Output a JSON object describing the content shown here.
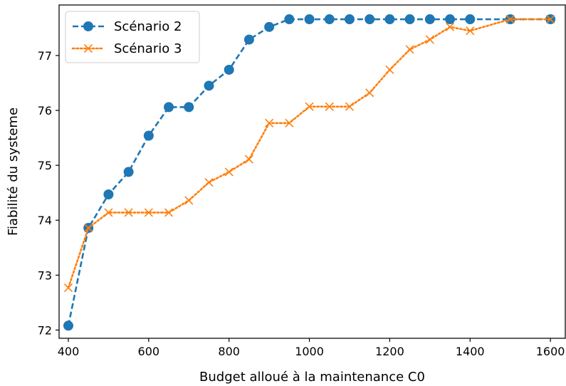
{
  "chart_data": {
    "type": "line",
    "title": "",
    "xlabel": "Budget alloué à la maintenance C0",
    "ylabel": "Fiabilité du systeme",
    "xlim": [
      377,
      1637
    ],
    "ylim": [
      71.85,
      77.92
    ],
    "xticks": [
      400,
      600,
      800,
      1000,
      1200,
      1400,
      1600
    ],
    "yticks": [
      72,
      73,
      74,
      75,
      76,
      77
    ],
    "grid": false,
    "legend": "top-left",
    "series": [
      {
        "name": "Scénario 2",
        "color": "#1f77b4",
        "line_style": "dashed",
        "marker": "circle",
        "x": [
          400,
          450,
          500,
          550,
          600,
          650,
          700,
          750,
          800,
          850,
          900,
          950,
          1000,
          1050,
          1100,
          1150,
          1200,
          1250,
          1300,
          1350,
          1400,
          1500,
          1600
        ],
        "y": [
          72.08,
          73.86,
          74.47,
          74.88,
          75.54,
          76.06,
          76.06,
          76.45,
          76.74,
          77.29,
          77.52,
          77.66,
          77.66,
          77.66,
          77.66,
          77.66,
          77.66,
          77.66,
          77.66,
          77.66,
          77.66,
          77.66,
          77.66
        ]
      },
      {
        "name": "Scénario 3",
        "color": "#ff7f0e",
        "line_style": "dotted",
        "marker": "x",
        "x": [
          400,
          450,
          500,
          550,
          600,
          650,
          700,
          750,
          800,
          850,
          900,
          950,
          1000,
          1050,
          1100,
          1150,
          1200,
          1250,
          1300,
          1350,
          1400,
          1500,
          1600
        ],
        "y": [
          72.77,
          73.86,
          74.14,
          74.14,
          74.14,
          74.14,
          74.36,
          74.69,
          74.88,
          75.11,
          75.77,
          75.77,
          76.07,
          76.07,
          76.07,
          76.32,
          76.74,
          77.11,
          77.29,
          77.52,
          77.45,
          77.66,
          77.66
        ]
      }
    ]
  }
}
